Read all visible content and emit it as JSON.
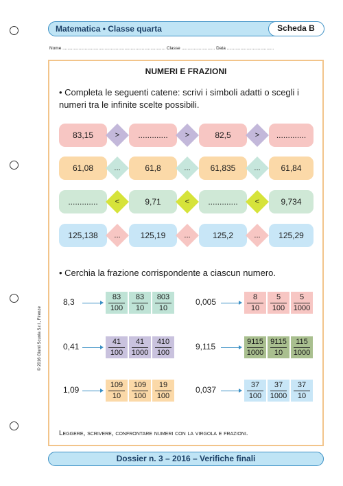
{
  "header": {
    "title": "Matematica • Classe quarta",
    "scheda": "Scheda B"
  },
  "student_line": "Nome ................................................................................... Classe ........................... Data ......................................",
  "section_title": "NUMERI E FRAZIONI",
  "instruction1": "• Completa le seguenti catene: scrivi i simboli adatti o scegli i numeri tra le infinite scelte possibili.",
  "chains": [
    {
      "boxes": [
        "83,15",
        ".............",
        "82,5",
        "............."
      ],
      "symbols": [
        ">",
        ">",
        ">"
      ],
      "box_color": "#f7c6c3",
      "diamond_color": "#c3b8da"
    },
    {
      "boxes": [
        "61,08",
        "61,8",
        "61,835",
        "61,84"
      ],
      "symbols": [
        "...",
        "...",
        "..."
      ],
      "box_color": "#fbd9a8",
      "diamond_color": "#c6e6dc"
    },
    {
      "boxes": [
        ".............",
        "9,71",
        ".............",
        "9,734"
      ],
      "symbols": [
        "<",
        "<",
        "<"
      ],
      "box_color": "#cfe8d6",
      "diamond_color": "#d6e33a"
    },
    {
      "boxes": [
        "125,138",
        "125,19",
        "125,2",
        "125,29"
      ],
      "symbols": [
        "...",
        "...",
        "..."
      ],
      "box_color": "#c8e6f7",
      "diamond_color": "#f7c6c3"
    }
  ],
  "instruction2": "• Cerchia la frazione corrispondente a ciascun numero.",
  "fraction_rows": [
    {
      "number": "8,3",
      "color": "#bfe3d6",
      "fractions": [
        [
          "83",
          "100"
        ],
        [
          "83",
          "10"
        ],
        [
          "803",
          "10"
        ]
      ]
    },
    {
      "number": "0,005",
      "color": "#f7c6c3",
      "fractions": [
        [
          "8",
          "10"
        ],
        [
          "5",
          "100"
        ],
        [
          "5",
          "1000"
        ]
      ]
    },
    {
      "number": "0,41",
      "color": "#c9c2de",
      "fractions": [
        [
          "41",
          "100"
        ],
        [
          "41",
          "1000"
        ],
        [
          "410",
          "100"
        ]
      ]
    },
    {
      "number": "9,115",
      "color": "#a9bf8f",
      "fractions": [
        [
          "9115",
          "1000"
        ],
        [
          "9115",
          "10"
        ],
        [
          "115",
          "1000"
        ]
      ]
    },
    {
      "number": "1,09",
      "color": "#fbd9a8",
      "fractions": [
        [
          "109",
          "10"
        ],
        [
          "109",
          "100"
        ],
        [
          "19",
          "100"
        ]
      ]
    },
    {
      "number": "0,037",
      "color": "#c8e6f7",
      "fractions": [
        [
          "37",
          "100"
        ],
        [
          "37",
          "1000"
        ],
        [
          "37",
          "10"
        ]
      ]
    }
  ],
  "footer_note": "Leggere, scrivere, confrontare numeri con la virgola e frazioni.",
  "bottom_bar": "Dossier n. 3 – 2016 – Verifiche finali",
  "copyright": "© 2016 Giunti Scuola S.r.l., Firenze"
}
